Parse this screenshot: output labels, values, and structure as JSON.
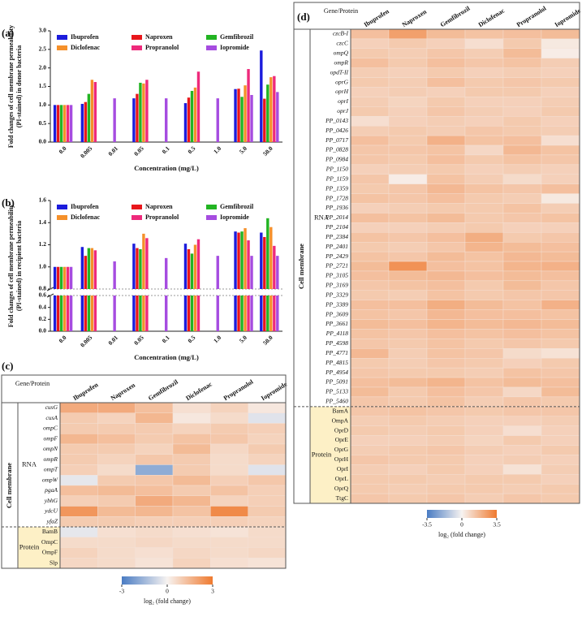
{
  "chart_data": [
    {
      "type": "bar",
      "panel": "(a)",
      "ylabel": [
        "Fold changes of cell membrane permeability",
        "(PI-stained) in donor bacteria"
      ],
      "xlabel": "Concentration (mg/L)",
      "categories": [
        "0.0",
        "0.005",
        "0.01",
        "0.05",
        "0.1",
        "0.5",
        "1.0",
        "5.0",
        "50.0"
      ],
      "series": [
        {
          "name": "Ibuprofen",
          "color": "#1c1cdc",
          "values": [
            1.0,
            1.03,
            null,
            1.18,
            null,
            1.05,
            null,
            1.43,
            2.47
          ]
        },
        {
          "name": "Naproxen",
          "color": "#e8161b",
          "values": [
            1.0,
            1.08,
            null,
            1.3,
            null,
            1.2,
            null,
            1.44,
            1.17
          ]
        },
        {
          "name": "Gemfibrozil",
          "color": "#22b422",
          "values": [
            1.0,
            1.3,
            null,
            1.6,
            null,
            1.38,
            null,
            1.22,
            1.55
          ]
        },
        {
          "name": "Diclofenac",
          "color": "#f5902a",
          "values": [
            1.0,
            1.68,
            null,
            1.58,
            null,
            1.47,
            null,
            1.53,
            1.75
          ]
        },
        {
          "name": "Propranolol",
          "color": "#ee2a7b",
          "values": [
            1.0,
            1.62,
            null,
            1.68,
            null,
            1.9,
            null,
            1.97,
            1.78
          ]
        },
        {
          "name": "Iopromide",
          "color": "#a64ce0",
          "values": [
            1.0,
            null,
            1.18,
            null,
            1.18,
            null,
            1.18,
            1.27,
            1.35
          ]
        }
      ],
      "ylim": [
        0,
        3
      ],
      "yticks": [
        {
          "value": 0,
          "label": "0.0"
        },
        0.5,
        {
          "value": 1,
          "label": "1.0"
        },
        1.5,
        {
          "value": 2,
          "label": "2.0"
        },
        2.5,
        {
          "value": 3,
          "label": "3.0"
        }
      ],
      "legend": "top"
    },
    {
      "type": "bar",
      "panel": "(b)",
      "ylabel": [
        "Fold changes of cell membrane permeability",
        "(PI-stained) in recipient bacteria"
      ],
      "xlabel": "Concentration (mg/L)",
      "categories": [
        "0.0",
        "0.005",
        "0.01",
        "0.05",
        "0.1",
        "0.5",
        "1.0",
        "5.0",
        "50.0"
      ],
      "series": [
        {
          "name": "Ibuprofen",
          "color": "#1c1cdc",
          "values": [
            1.0,
            1.18,
            null,
            1.21,
            null,
            1.21,
            null,
            1.32,
            1.31
          ]
        },
        {
          "name": "Naproxen",
          "color": "#e8161b",
          "values": [
            1.0,
            1.1,
            null,
            1.17,
            null,
            1.16,
            null,
            1.31,
            1.27
          ]
        },
        {
          "name": "Gemfibrozil",
          "color": "#22b422",
          "values": [
            1.0,
            1.17,
            null,
            1.16,
            null,
            1.12,
            null,
            1.32,
            1.44
          ]
        },
        {
          "name": "Diclofenac",
          "color": "#f5902a",
          "values": [
            1.0,
            1.17,
            null,
            1.3,
            null,
            1.2,
            null,
            1.35,
            1.36
          ]
        },
        {
          "name": "Propranolol",
          "color": "#ee2a7b",
          "values": [
            1.0,
            1.15,
            null,
            1.26,
            null,
            1.25,
            null,
            1.24,
            1.19
          ]
        },
        {
          "name": "Iopromide",
          "color": "#a64ce0",
          "values": [
            1.0,
            null,
            1.05,
            null,
            1.08,
            null,
            1.1,
            1.1,
            1.1
          ]
        }
      ],
      "ylim": [
        0,
        1.6
      ],
      "axis_break": [
        0.6,
        0.8
      ],
      "yticks": [
        {
          "value": 0,
          "label": "0.0"
        },
        0.2,
        0.4,
        0.6,
        0.8,
        {
          "value": 1,
          "label": "1.0"
        },
        1.2,
        1.4,
        1.6
      ],
      "legend": "top"
    },
    {
      "type": "heatmap",
      "panel": "(c)",
      "column_header": "Gene/Protein",
      "group_label": "Cell membrane",
      "columns": [
        "Ibuprofen",
        "Naproxen",
        "Gemfibrozil",
        "Diclofenac",
        "Propranolol",
        "Iopromide"
      ],
      "row_groups": [
        {
          "name": "RNA",
          "style": "italic",
          "rows": [
            "cusG",
            "cusA",
            "ompC",
            "ompF",
            "ompN",
            "ompR",
            "ompT",
            "ompW",
            "pgaA",
            "ybhG",
            "ydcU",
            "yfaZ"
          ],
          "values": [
            [
              1.8,
              1.8,
              1.3,
              0.5,
              0.8,
              0.3
            ],
            [
              1.0,
              0.8,
              1.5,
              0.3,
              0.6,
              -0.4
            ],
            [
              1.0,
              1.0,
              1.0,
              0.8,
              1.0,
              0.9
            ],
            [
              1.5,
              1.3,
              1.0,
              1.2,
              1.1,
              0.8
            ],
            [
              1.0,
              1.0,
              0.8,
              1.4,
              0.7,
              1.0
            ],
            [
              1.0,
              0.8,
              1.1,
              1.0,
              0.6,
              0.8
            ],
            [
              0.9,
              0.6,
              -1.8,
              1.0,
              0.6,
              -0.4
            ],
            [
              -0.3,
              1.0,
              1.1,
              1.4,
              0.9,
              1.1
            ],
            [
              1.3,
              1.4,
              1.3,
              1.0,
              1.2,
              0.9
            ],
            [
              0.9,
              1.0,
              1.8,
              1.5,
              0.8,
              0.9
            ],
            [
              2.3,
              1.4,
              1.5,
              1.2,
              2.6,
              1.0
            ],
            [
              1.0,
              1.0,
              0.9,
              0.9,
              0.9,
              0.8
            ]
          ]
        },
        {
          "name": "Protein",
          "style": "normal",
          "rows": [
            "BamB",
            "OmpC",
            "OmpF",
            "Slp"
          ],
          "values": [
            [
              -0.3,
              0.5,
              0.6,
              0.5,
              0.4,
              0.6
            ],
            [
              0.6,
              0.6,
              0.7,
              0.6,
              0.6,
              0.6
            ],
            [
              0.8,
              0.6,
              0.5,
              0.7,
              0.6,
              0.7
            ],
            [
              0.7,
              0.6,
              0.4,
              0.8,
              0.5,
              0.4
            ]
          ]
        }
      ],
      "zlim": [
        -3,
        3
      ],
      "colorbar_ticks": [
        -3,
        0,
        3
      ],
      "colorbar_label": "log₂ (fold change)",
      "colormap": [
        "#4a7cc3",
        "#f7f3f1",
        "#ef7a2f"
      ]
    },
    {
      "type": "heatmap",
      "panel": "(d)",
      "column_header": "Gene/Protein",
      "group_label": "Cell membrane",
      "columns": [
        "Ibuprofen",
        "Naproxen",
        "Gemfibrozil",
        "Diclofenac",
        "Propranolol",
        "Iopromide"
      ],
      "row_groups": [
        {
          "name": "RNA",
          "style": "italic",
          "rows": [
            "czcB-I",
            "czcC",
            "ompQ",
            "ompR",
            "opdT-II",
            "oprG",
            "oprH",
            "oprI",
            "oprJ",
            "PP_0143",
            "PP_0426",
            "PP_0717",
            "PP_0828",
            "PP_0984",
            "PP_1150",
            "PP_1159",
            "PP_1359",
            "PP_1728",
            "PP_1936",
            "PP_2014",
            "PP_2104",
            "PP_2384",
            "PP_2401",
            "PP_2429",
            "PP_2721",
            "PP_3105",
            "PP_3169",
            "PP_3329",
            "PP_3389",
            "PP_3609",
            "PP_3661",
            "PP_4118",
            "PP_4598",
            "PP_4771",
            "PP_4815",
            "PP_4954",
            "PP_5091",
            "PP_5133",
            "PP_5460"
          ],
          "values": [
            [
              1.5,
              2.4,
              1.6,
              1.4,
              1.5,
              1.6
            ],
            [
              1.0,
              1.2,
              1.0,
              0.6,
              1.2,
              0.3
            ],
            [
              1.2,
              1.1,
              1.3,
              1.1,
              1.6,
              0.2
            ],
            [
              1.5,
              1.2,
              1.5,
              1.3,
              1.4,
              1.1
            ],
            [
              1.1,
              1.0,
              1.2,
              1.0,
              1.1,
              1.0
            ],
            [
              1.2,
              1.1,
              1.5,
              1.2,
              1.3,
              1.2
            ],
            [
              1.0,
              1.1,
              1.0,
              1.2,
              1.2,
              1.0
            ],
            [
              1.1,
              0.9,
              1.2,
              1.0,
              1.0,
              1.1
            ],
            [
              1.2,
              1.0,
              1.3,
              1.1,
              1.0,
              1.2
            ],
            [
              0.6,
              1.0,
              1.1,
              1.0,
              1.2,
              1.0
            ],
            [
              1.1,
              1.2,
              1.1,
              1.3,
              1.2,
              1.1
            ],
            [
              1.5,
              1.2,
              1.9,
              1.4,
              1.5,
              0.6
            ],
            [
              1.3,
              1.3,
              1.4,
              0.8,
              1.7,
              1.4
            ],
            [
              1.3,
              1.2,
              1.5,
              1.2,
              1.4,
              1.3
            ],
            [
              1.0,
              1.1,
              1.2,
              1.0,
              1.1,
              1.0
            ],
            [
              1.3,
              0.2,
              1.4,
              1.1,
              0.7,
              1.0
            ],
            [
              1.2,
              1.3,
              1.7,
              1.4,
              1.3,
              1.5
            ],
            [
              1.4,
              1.3,
              1.5,
              1.2,
              1.1,
              0.3
            ],
            [
              1.0,
              1.1,
              1.2,
              1.2,
              1.4,
              1.1
            ],
            [
              1.5,
              1.4,
              1.6,
              1.2,
              1.3,
              1.4
            ],
            [
              1.0,
              1.0,
              1.1,
              1.2,
              1.0,
              1.0
            ],
            [
              1.4,
              1.3,
              1.5,
              2.0,
              1.2,
              1.3
            ],
            [
              1.2,
              1.1,
              1.3,
              1.8,
              1.6,
              1.5
            ],
            [
              1.4,
              1.3,
              1.6,
              1.4,
              1.7,
              1.6
            ],
            [
              1.6,
              2.8,
              1.5,
              1.4,
              1.8,
              1.9
            ],
            [
              1.5,
              1.6,
              1.7,
              1.5,
              1.6,
              1.5
            ],
            [
              1.3,
              1.4,
              1.5,
              1.2,
              1.6,
              1.3
            ],
            [
              1.2,
              1.1,
              1.4,
              1.2,
              1.3,
              1.3
            ],
            [
              1.5,
              1.5,
              2.0,
              1.6,
              1.4,
              1.9
            ],
            [
              1.4,
              1.3,
              1.7,
              1.5,
              1.5,
              1.4
            ],
            [
              1.6,
              1.5,
              1.8,
              1.6,
              1.7,
              1.6
            ],
            [
              1.4,
              1.3,
              1.5,
              1.4,
              1.5,
              1.4
            ],
            [
              1.3,
              1.2,
              1.4,
              1.2,
              1.3,
              1.2
            ],
            [
              1.7,
              1.1,
              1.4,
              1.3,
              0.7,
              0.5
            ],
            [
              1.2,
              1.1,
              1.3,
              1.2,
              1.0,
              1.2
            ],
            [
              1.3,
              1.2,
              1.2,
              1.1,
              1.4,
              1.3
            ],
            [
              1.5,
              1.6,
              1.8,
              1.4,
              1.6,
              1.5
            ],
            [
              1.6,
              1.2,
              1.5,
              1.3,
              0.8,
              1.6
            ],
            [
              1.3,
              1.2,
              1.4,
              1.1,
              1.3,
              1.2
            ]
          ]
        },
        {
          "name": "Protein",
          "style": "normal",
          "rows": [
            "BamA",
            "OmpA",
            "OprD",
            "OprE",
            "OprG",
            "OprH",
            "OprI",
            "OprL",
            "OprQ",
            "TtgC"
          ],
          "values": [
            [
              1.3,
              1.4,
              1.3,
              1.2,
              1.3,
              1.3
            ],
            [
              1.1,
              1.2,
              1.1,
              1.0,
              1.0,
              1.1
            ],
            [
              1.2,
              1.1,
              1.2,
              1.0,
              0.6,
              1.0
            ],
            [
              1.0,
              1.0,
              1.1,
              0.9,
              1.2,
              1.0
            ],
            [
              1.1,
              1.2,
              1.3,
              1.1,
              1.0,
              1.2
            ],
            [
              1.3,
              1.2,
              1.2,
              1.0,
              1.1,
              1.0
            ],
            [
              1.1,
              1.0,
              1.2,
              1.0,
              0.5,
              1.1
            ],
            [
              1.2,
              1.2,
              1.1,
              1.2,
              1.2,
              1.0
            ],
            [
              1.2,
              1.1,
              1.2,
              1.2,
              1.1,
              1.2
            ],
            [
              1.3,
              1.2,
              1.3,
              1.1,
              1.3,
              1.2
            ]
          ]
        }
      ],
      "zlim": [
        -3.5,
        3.5
      ],
      "colorbar_ticks": [
        -3.5,
        0,
        3.5
      ],
      "colorbar_label": "log₂ (fold change)",
      "colormap": [
        "#4a7cc3",
        "#f7f3f1",
        "#ef7a2f"
      ]
    }
  ]
}
